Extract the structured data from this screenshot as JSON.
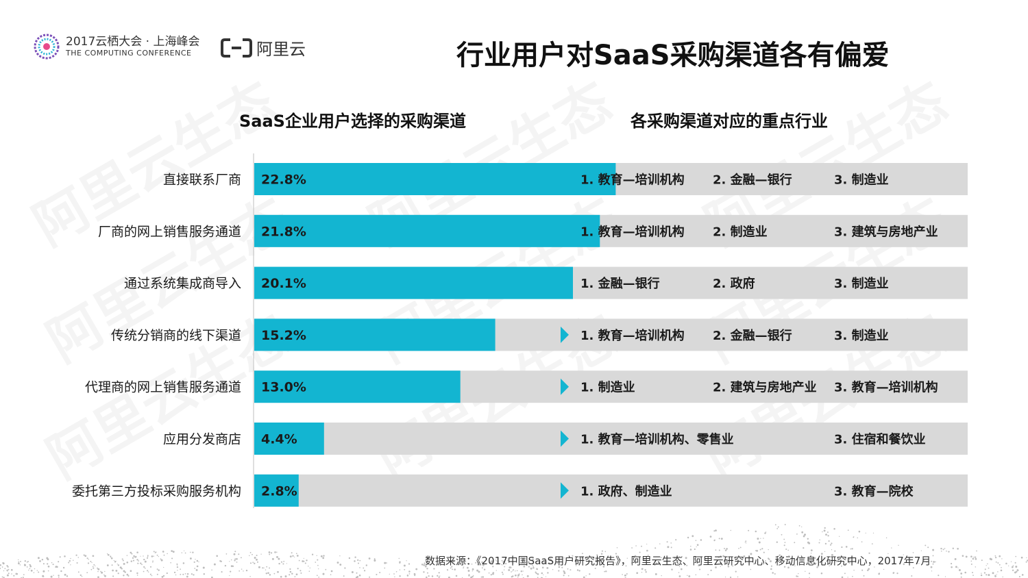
{
  "header": {
    "conference_title": "2017云栖大会 · 上海峰会",
    "conference_subtitle": "THE COMPUTING CONFERENCE",
    "brand": "阿里云",
    "page_title": "行业用户对SaaS采购渠道各有偏爱"
  },
  "left_title": "SaaS企业用户选择的采购渠道",
  "right_title": "各采购渠道对应的重点行业",
  "source": "数据来源：《2017中国SaaS用户研究报告》，阿里云生态、阿里云研究中心、移动信息化研究中心，2017年7月",
  "watermark_text": "阿里云生态",
  "colors": {
    "bar": "#13b5d1",
    "track": "#d9d9d9",
    "arrow": "#13b5d1",
    "text": "#1a1a1a"
  },
  "chart_data": {
    "type": "bar",
    "orientation": "horizontal",
    "title": "SaaS企业用户选择的采购渠道",
    "unit": "%",
    "xlim": [
      0,
      45
    ],
    "categories": [
      "直接联系厂商",
      "厂商的网上销售服务通道",
      "通过系统集成商导入",
      "传统分销商的线下渠道",
      "代理商的网上销售服务通道",
      "应用分发商店",
      "委托第三方投标采购服务机构"
    ],
    "values": [
      22.8,
      21.8,
      20.1,
      15.2,
      13.0,
      4.4,
      2.8
    ],
    "value_labels": [
      "22.8%",
      "21.8%",
      "20.1%",
      "15.2%",
      "13.0%",
      "4.4%",
      "2.8%"
    ]
  },
  "industries": [
    [
      "1. 教育—培训机构",
      "2. 金融—银行",
      "3. 制造业"
    ],
    [
      "1. 教育—培训机构",
      "2. 制造业",
      "3. 建筑与房地产业"
    ],
    [
      "1. 金融—银行",
      "2. 政府",
      "3. 制造业"
    ],
    [
      "1. 教育—培训机构",
      "2. 金融—银行",
      "3. 制造业"
    ],
    [
      "1. 制造业",
      "2. 建筑与房地产业",
      "3. 教育—培训机构"
    ],
    [
      "1. 教育—培训机构、零售业",
      "",
      "3. 住宿和餐饮业"
    ],
    [
      "1. 政府、制造业",
      "",
      "3. 教育—院校"
    ]
  ]
}
